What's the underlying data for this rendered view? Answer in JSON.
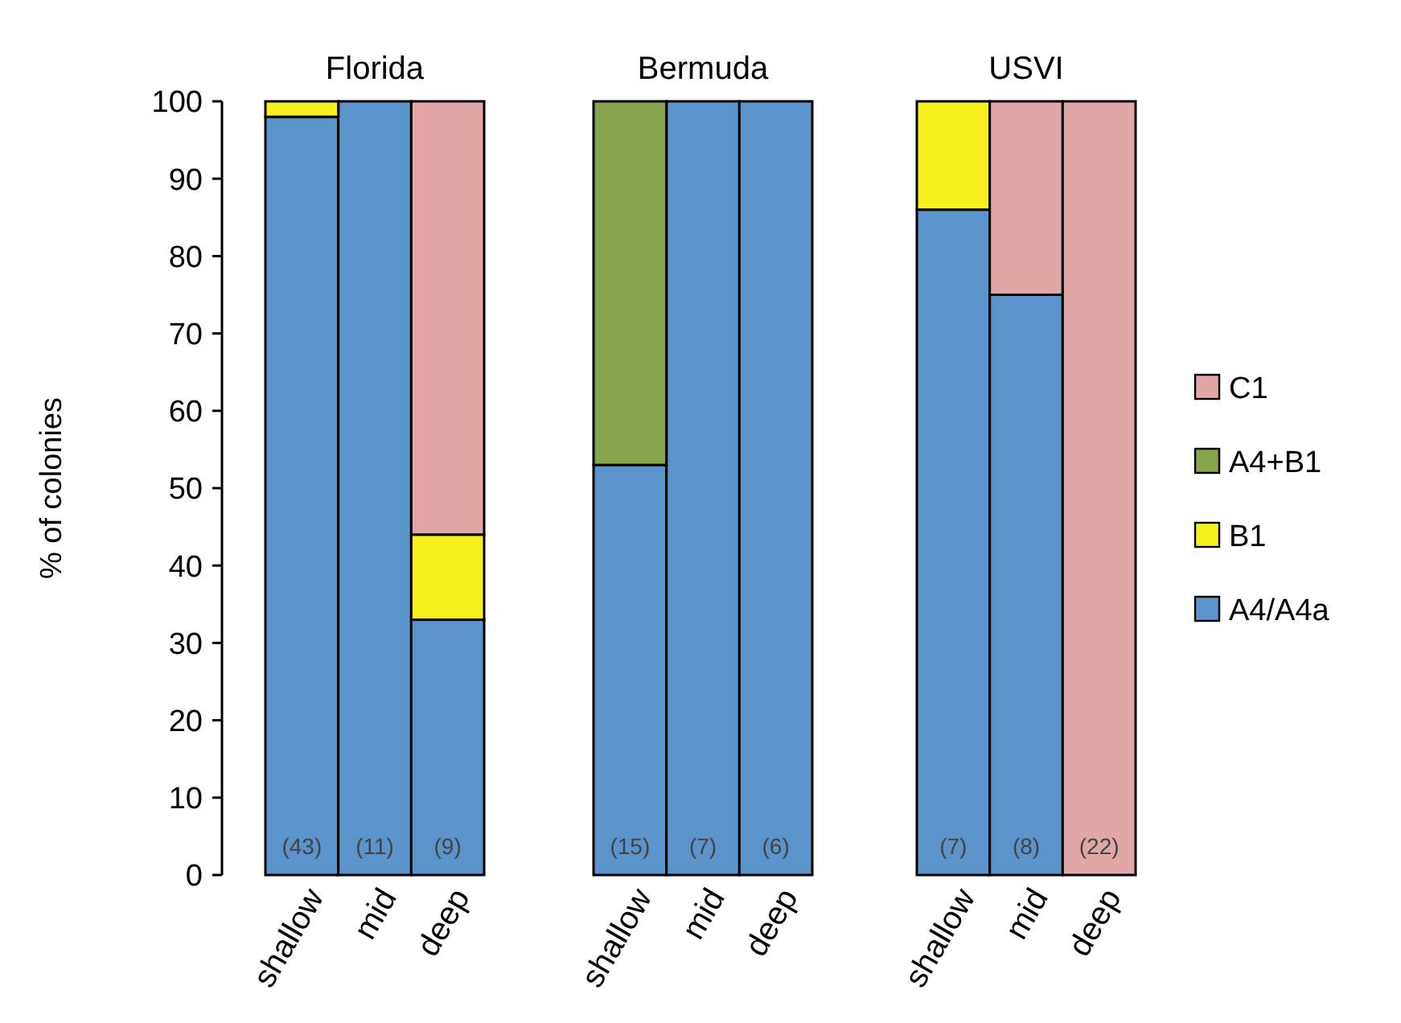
{
  "chart_data": [
    {
      "type": "bar",
      "title": "Florida",
      "ylabel": "% of colonies",
      "categories": [
        "shallow",
        "mid",
        "deep"
      ],
      "stacked": true,
      "ylim": [
        0,
        100
      ],
      "yticks": [
        0,
        10,
        20,
        30,
        40,
        50,
        60,
        70,
        80,
        90,
        100
      ],
      "series": [
        {
          "color": "#5b93cb",
          "values": [
            98,
            100,
            33
          ]
        },
        {
          "color": "#f5f01e",
          "values": [
            2,
            null,
            11
          ]
        },
        {
          "color": "#e3a6a6",
          "values": [
            null,
            null,
            56
          ]
        }
      ],
      "annotations": [
        "(43)",
        "(11)",
        "(9)"
      ]
    },
    {
      "type": "bar",
      "title": "Bermuda",
      "categories": [
        "shallow",
        "mid",
        "deep"
      ],
      "stacked": true,
      "ylim": [
        0,
        100
      ],
      "yticks": [
        0,
        10,
        20,
        30,
        40,
        50,
        60,
        70,
        80,
        90,
        100
      ],
      "tick_labels": "x",
      "series": [
        {
          "color": "#5b93cb",
          "values": [
            53,
            100,
            100
          ]
        },
        {
          "color": "#86a24a",
          "values": [
            47,
            null,
            null
          ]
        }
      ],
      "annotations": [
        "(15)",
        "(7)",
        "(6)"
      ]
    },
    {
      "type": "bar",
      "title": "USVI",
      "categories": [
        "shallow",
        "mid",
        "deep"
      ],
      "stacked": true,
      "ylim": [
        0,
        100
      ],
      "yticks": [
        0,
        10,
        20,
        30,
        40,
        50,
        60,
        70,
        80,
        90,
        100
      ],
      "tick_labels": "x",
      "legend": "right",
      "series": [
        {
          "name": "A4/A4a",
          "color": "#5b93cb",
          "values": [
            86,
            75,
            null
          ]
        },
        {
          "name": "B1",
          "color": "#f5f01e",
          "values": [
            14,
            null,
            null
          ]
        },
        {
          "name": "A4+B1",
          "color": "#86a24a",
          "values": [
            null,
            null,
            null
          ]
        },
        {
          "name": "C1",
          "color": "#e3a6a6",
          "values": [
            null,
            25,
            100
          ]
        }
      ],
      "annotations": [
        "(7)",
        "(8)",
        "(22)"
      ]
    }
  ]
}
